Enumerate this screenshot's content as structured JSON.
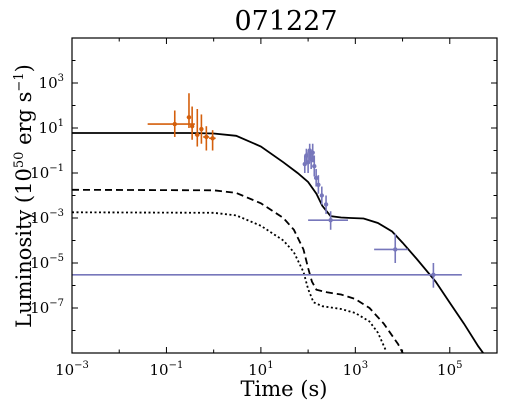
{
  "chart_data": {
    "type": "line",
    "title": "071227",
    "xlabel": "Time (s)",
    "ylabel": "Luminosity (10",
    "ylabel_exp": "50",
    "ylabel_unit": " erg s",
    "ylabel_unit_exp": "−1",
    "ylabel_close": ")",
    "x_scale": "log",
    "y_scale": "log",
    "xlim": [
      0.001,
      1000000
    ],
    "ylim": [
      1e-09,
      100000
    ],
    "x_ticks": [
      {
        "value": 0.001,
        "base": "10",
        "exp": "−3"
      },
      {
        "value": 0.1,
        "base": "10",
        "exp": "−1"
      },
      {
        "value": 10,
        "base": "10",
        "exp": "1"
      },
      {
        "value": 1000,
        "base": "10",
        "exp": "3"
      },
      {
        "value": 100000,
        "base": "10",
        "exp": "5"
      }
    ],
    "y_ticks": [
      {
        "value": 1e-07,
        "base": "10",
        "exp": "−7"
      },
      {
        "value": 1e-05,
        "base": "10",
        "exp": "−5"
      },
      {
        "value": 0.001,
        "base": "10",
        "exp": "−3"
      },
      {
        "value": 0.1,
        "base": "10",
        "exp": "−1"
      },
      {
        "value": 10,
        "base": "10",
        "exp": "1"
      },
      {
        "value": 1000,
        "base": "10",
        "exp": "3"
      }
    ],
    "grid": false,
    "legend": "none",
    "colors": {
      "orange": "#d45f0c",
      "purple": "#7777bb",
      "line": "#000000"
    },
    "model_curves": [
      {
        "style": "solid",
        "points": [
          [
            0.001,
            6.0
          ],
          [
            0.3,
            6.0
          ],
          [
            1,
            5.7
          ],
          [
            3,
            4.5
          ],
          [
            10,
            1.5
          ],
          [
            30,
            0.3
          ],
          [
            60,
            0.1
          ],
          [
            100,
            0.04
          ],
          [
            150,
            0.012
          ],
          [
            200,
            0.0035
          ],
          [
            300,
            0.0012
          ],
          [
            500,
            0.00105
          ],
          [
            800,
            0.001
          ],
          [
            1500,
            0.00095
          ],
          [
            3000,
            0.0006
          ],
          [
            6000,
            0.00025
          ],
          [
            10000,
            8e-05
          ],
          [
            20000,
            1.5e-05
          ],
          [
            50000,
            1.5e-06
          ],
          [
            100000,
            1.7e-07
          ],
          [
            200000,
            2e-08
          ],
          [
            400000,
            2e-09
          ],
          [
            700000,
            4e-10
          ]
        ]
      },
      {
        "style": "dashed",
        "points": [
          [
            0.001,
            0.018
          ],
          [
            1,
            0.017
          ],
          [
            3,
            0.013
          ],
          [
            10,
            0.0045
          ],
          [
            30,
            0.001
          ],
          [
            50,
            0.0003
          ],
          [
            80,
            4e-05
          ],
          [
            100,
            6e-06
          ],
          [
            120,
            1.5e-06
          ],
          [
            150,
            6.5e-07
          ],
          [
            250,
            5e-07
          ],
          [
            500,
            4e-07
          ],
          [
            1000,
            2.5e-07
          ],
          [
            2000,
            1e-07
          ],
          [
            4000,
            2e-08
          ],
          [
            8000,
            2.5e-09
          ],
          [
            12000,
            5e-10
          ]
        ]
      },
      {
        "style": "dotted",
        "points": [
          [
            0.001,
            0.0018
          ],
          [
            1,
            0.0017
          ],
          [
            3,
            0.0013
          ],
          [
            10,
            0.00045
          ],
          [
            30,
            0.0001
          ],
          [
            50,
            3e-05
          ],
          [
            80,
            4e-06
          ],
          [
            100,
            7e-07
          ],
          [
            130,
            1.8e-07
          ],
          [
            200,
            1.2e-07
          ],
          [
            500,
            9e-08
          ],
          [
            1000,
            6e-08
          ],
          [
            2000,
            2.5e-08
          ],
          [
            3000,
            8e-09
          ],
          [
            4500,
            1.2e-09
          ]
        ]
      }
    ],
    "series": [
      {
        "color": "#d45f0c",
        "points": [
          {
            "x": 0.15,
            "y": 15,
            "xerr": [
              0.04,
              0.4
            ],
            "yerr": [
              4,
              60
            ]
          },
          {
            "x": 0.3,
            "y": 30,
            "xerr": [
              0.27,
              0.33
            ],
            "yerr": [
              10,
              350
            ]
          },
          {
            "x": 0.35,
            "y": 12,
            "xerr": [
              0.32,
              0.38
            ],
            "yerr": [
              3,
              90
            ]
          },
          {
            "x": 0.45,
            "y": 5,
            "xerr": [
              0.4,
              0.5
            ],
            "yerr": [
              1.5,
              70
            ]
          },
          {
            "x": 0.55,
            "y": 9,
            "xerr": [
              0.5,
              0.6
            ],
            "yerr": [
              2,
              40
            ]
          },
          {
            "x": 0.7,
            "y": 4,
            "xerr": [
              0.6,
              0.8
            ],
            "yerr": [
              1,
              12
            ]
          },
          {
            "x": 0.95,
            "y": 3.5,
            "xerr": [
              0.8,
              1.1
            ],
            "yerr": [
              1,
              8
            ]
          }
        ]
      },
      {
        "color": "#7777bb",
        "points": [
          {
            "x": 85,
            "y": 0.25,
            "xerr": [
              82,
              88
            ],
            "yerr": [
              0.1,
              0.6
            ]
          },
          {
            "x": 92,
            "y": 0.6,
            "xerr": [
              89,
              95
            ],
            "yerr": [
              0.3,
              1.2
            ]
          },
          {
            "x": 100,
            "y": 0.3,
            "xerr": [
              97,
              103
            ],
            "yerr": [
              0.1,
              0.9
            ]
          },
          {
            "x": 108,
            "y": 1.0,
            "xerr": [
              105,
              111
            ],
            "yerr": [
              0.4,
              2.0
            ]
          },
          {
            "x": 116,
            "y": 0.4,
            "xerr": [
              113,
              119
            ],
            "yerr": [
              0.15,
              1.0
            ]
          },
          {
            "x": 125,
            "y": 0.8,
            "xerr": [
              121,
              129
            ],
            "yerr": [
              0.3,
              2.0
            ]
          },
          {
            "x": 135,
            "y": 0.2,
            "xerr": [
              130,
              140
            ],
            "yerr": [
              0.07,
              0.6
            ]
          },
          {
            "x": 148,
            "y": 0.06,
            "xerr": [
              140,
              156
            ],
            "yerr": [
              0.025,
              0.15
            ]
          },
          {
            "x": 165,
            "y": 0.03,
            "xerr": [
              156,
              175
            ],
            "yerr": [
              0.012,
              0.08
            ]
          },
          {
            "x": 195,
            "y": 0.01,
            "xerr": [
              180,
              210
            ],
            "yerr": [
              0.004,
              0.025
            ]
          },
          {
            "x": 240,
            "y": 0.004,
            "xerr": [
              220,
              260
            ],
            "yerr": [
              0.0015,
              0.01
            ]
          },
          {
            "x": 300,
            "y": 0.0008,
            "xerr": [
              100,
              700
            ],
            "yerr": [
              0.0003,
              0.002
            ]
          },
          {
            "x": 7000,
            "y": 4e-05,
            "xerr": [
              2500,
              13000
            ],
            "yerr": [
              1e-05,
              0.0002
            ]
          },
          {
            "x": 45000,
            "y": 3e-06,
            "xerr": [
              0.001,
              180000
            ],
            "yerr": [
              8e-07,
              1e-05
            ]
          }
        ]
      }
    ]
  }
}
